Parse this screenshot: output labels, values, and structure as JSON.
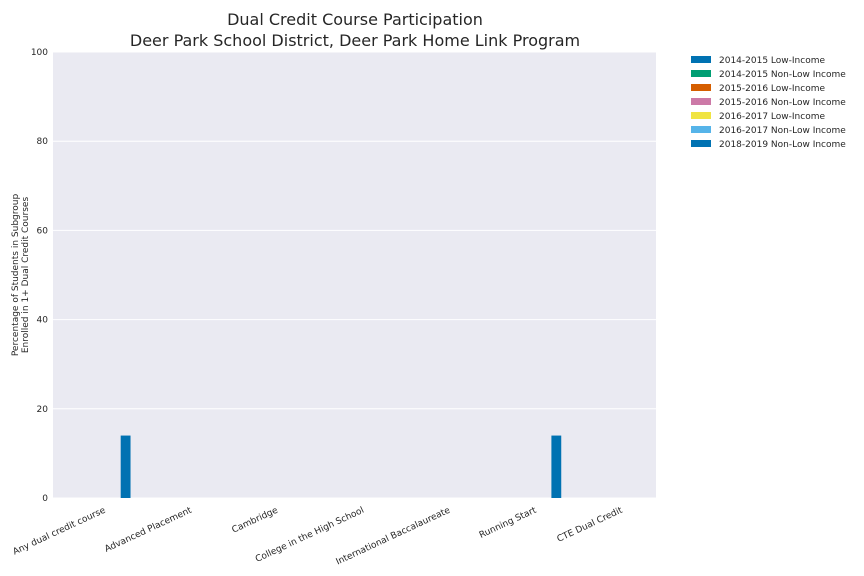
{
  "chart_data": {
    "type": "bar",
    "title_lines": [
      "Dual Credit Course Participation",
      "Deer Park School District, Deer Park Home Link Program"
    ],
    "ylabel_lines": [
      "Percentage of Students in Subgroup",
      "Enrolled in 1+ Dual Credit Courses"
    ],
    "xlabel": "",
    "ylim": [
      0,
      100
    ],
    "yticks": [
      0,
      20,
      40,
      60,
      80,
      100
    ],
    "grid": true,
    "legend_position": "outside-top-right",
    "categories": [
      "Any dual credit course",
      "Advanced Placement",
      "Cambridge",
      "College in the High School",
      "International Baccalaureate",
      "Running Start",
      "CTE Dual Credit"
    ],
    "series": [
      {
        "name": "2014-2015 Low-Income",
        "color": "#0072b2",
        "values": [
          0,
          0,
          0,
          0,
          0,
          0,
          0
        ]
      },
      {
        "name": "2014-2015 Non-Low Income",
        "color": "#009e73",
        "values": [
          0,
          0,
          0,
          0,
          0,
          0,
          0
        ]
      },
      {
        "name": "2015-2016 Low-Income",
        "color": "#d55e00",
        "values": [
          0,
          0,
          0,
          0,
          0,
          0,
          0
        ]
      },
      {
        "name": "2015-2016 Non-Low Income",
        "color": "#cc79a7",
        "values": [
          0,
          0,
          0,
          0,
          0,
          0,
          0
        ]
      },
      {
        "name": "2016-2017 Low-Income",
        "color": "#f0e442",
        "values": [
          0,
          0,
          0,
          0,
          0,
          0,
          0
        ]
      },
      {
        "name": "2016-2017 Non-Low Income",
        "color": "#56b4e9",
        "values": [
          0,
          0,
          0,
          0,
          0,
          0,
          0
        ]
      },
      {
        "name": "2018-2019 Non-Low Income",
        "color": "#0072b2",
        "values": [
          14,
          0,
          0,
          0,
          0,
          14,
          0
        ]
      }
    ],
    "colors": {
      "plot_background": "#eaeaf2",
      "gridline": "#ffffff",
      "text": "#262626"
    }
  }
}
